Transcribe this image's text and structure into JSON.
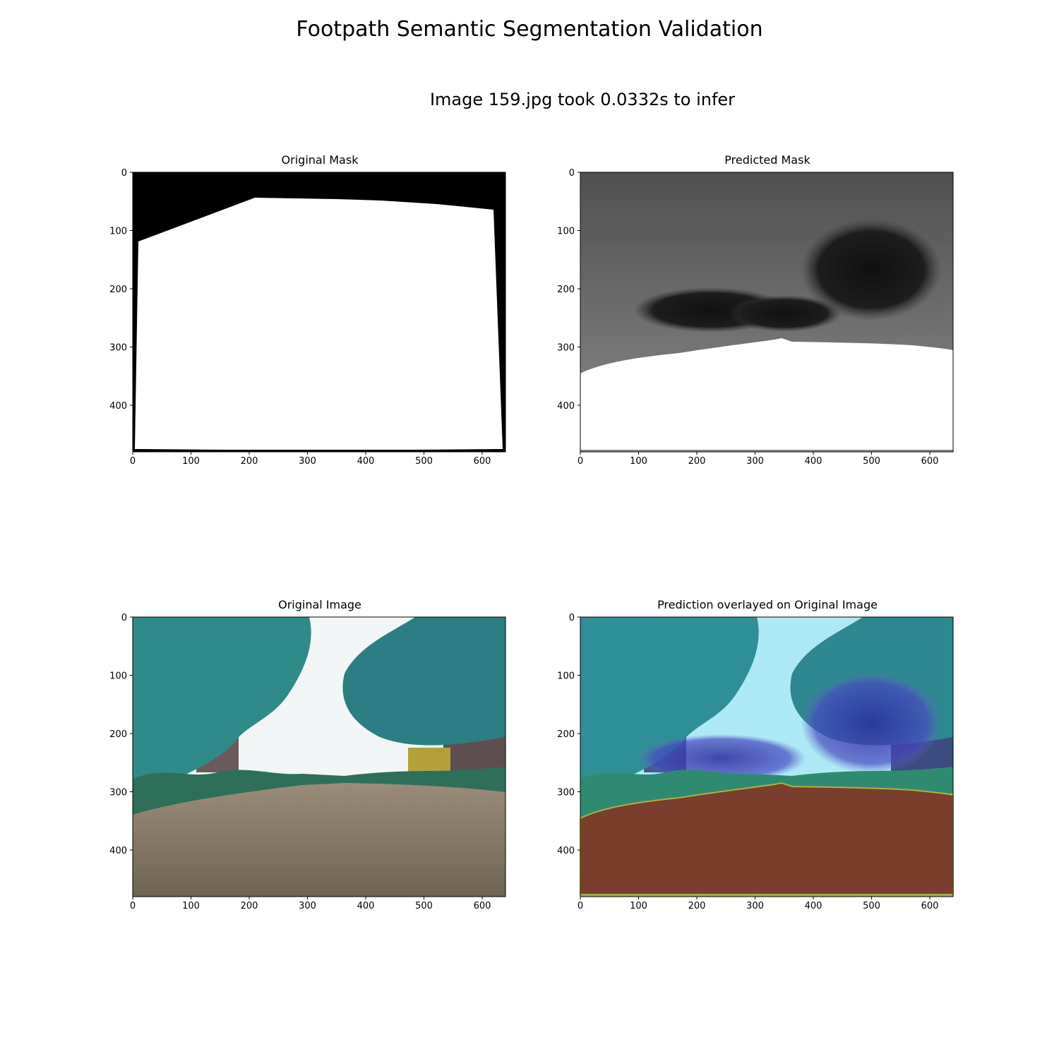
{
  "figure": {
    "title": "Footpath Semantic Segmentation Validation",
    "subtitle": "Image 159.jpg took 0.0332s to infer"
  },
  "panels": [
    {
      "id": "original-mask",
      "title": "Original Mask",
      "x_ticks": [
        0,
        100,
        200,
        300,
        400,
        500,
        600
      ],
      "y_ticks": [
        0,
        100,
        200,
        300,
        400
      ],
      "x_range": [
        0,
        640
      ],
      "y_range": [
        0,
        480
      ]
    },
    {
      "id": "predicted-mask",
      "title": "Predicted Mask",
      "x_ticks": [
        0,
        100,
        200,
        300,
        400,
        500,
        600
      ],
      "y_ticks": [
        0,
        100,
        200,
        300,
        400
      ],
      "x_range": [
        0,
        640
      ],
      "y_range": [
        0,
        480
      ]
    },
    {
      "id": "original-image",
      "title": "Original Image",
      "x_ticks": [
        0,
        100,
        200,
        300,
        400,
        500,
        600
      ],
      "y_ticks": [
        0,
        100,
        200,
        300,
        400
      ],
      "x_range": [
        0,
        640
      ],
      "y_range": [
        0,
        480
      ]
    },
    {
      "id": "prediction-overlay",
      "title": "Prediction overlayed on Original Image",
      "x_ticks": [
        0,
        100,
        200,
        300,
        400,
        500,
        600
      ],
      "y_ticks": [
        0,
        100,
        200,
        300,
        400
      ],
      "x_range": [
        0,
        640
      ],
      "y_range": [
        0,
        480
      ]
    }
  ],
  "colors": {
    "mask_background": "#000000",
    "mask_footpath": "#ffffff",
    "predicted_background": "#4a4a4a",
    "predicted_blob": "#151515",
    "sky": "#f2f6f6",
    "foliage": "#2f8a8a",
    "pavement": "#7d7262",
    "overlay_sky": "#aeeaf5",
    "overlay_blob": "#3a3aa8",
    "overlay_footpath": "#7a3e2c"
  }
}
